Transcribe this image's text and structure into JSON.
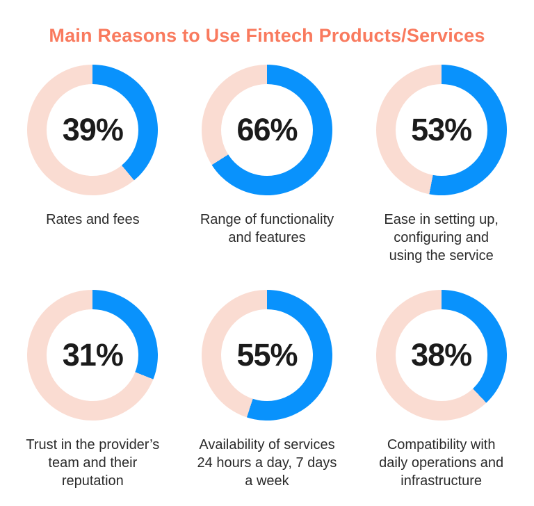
{
  "chart_data": {
    "type": "pie",
    "subtype": "donut-grid",
    "title": "Main Reasons to Use Fintech Products/Services",
    "unit": "%",
    "arc_start": "top",
    "direction": "clockwise",
    "legend": "none",
    "items": [
      {
        "value": 39,
        "pct_label": "39%",
        "label": "Rates and fees"
      },
      {
        "value": 66,
        "pct_label": "66%",
        "label": "Range of functionality\nand features"
      },
      {
        "value": 53,
        "pct_label": "53%",
        "label": "Ease in setting up,\nconfiguring and\nusing the service"
      },
      {
        "value": 31,
        "pct_label": "31%",
        "label": "Trust in the provider’s\nteam and their\nreputation"
      },
      {
        "value": 55,
        "pct_label": "55%",
        "label": "Availability of services\n24 hours a day, 7 days\na week"
      },
      {
        "value": 38,
        "pct_label": "38%",
        "label": "Compatibility with\ndaily operations and\ninfrastructure"
      }
    ],
    "colors": {
      "filled_arc": "#0992FC",
      "remainder_arc": "#FADCD2",
      "title_text": "#F97A5E",
      "value_text": "#1B1B1B",
      "label_text": "#2B2B2B"
    }
  }
}
